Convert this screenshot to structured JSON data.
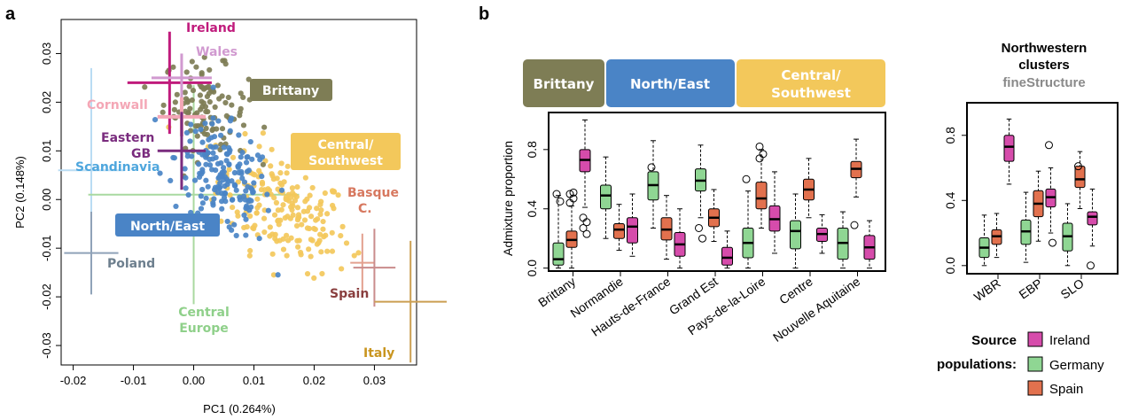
{
  "panel_a": {
    "letter": "a",
    "chart_data": {
      "type": "scatter",
      "xlabel": "PC1 (0.264%)",
      "ylabel": "PC2 (0.148%)",
      "xlim": [
        -0.022,
        0.037
      ],
      "ylim": [
        -0.034,
        0.037
      ],
      "x_ticks": [
        "-0.02",
        "-0.01",
        "0.00",
        "0.01",
        "0.02",
        "0.03"
      ],
      "y_ticks": [
        "-0.03",
        "-0.02",
        "-0.01",
        "0.00",
        "0.01",
        "0.02",
        "0.03"
      ],
      "clusters": [
        {
          "name": "Brittany",
          "color": "#7e7d55",
          "center": [
            0.002,
            0.019
          ],
          "spread": [
            0.0035,
            0.0045
          ],
          "n": 110
        },
        {
          "name": "North/East",
          "color": "#4a84c6",
          "center": [
            0.005,
            0.004
          ],
          "spread": [
            0.004,
            0.0055
          ],
          "n": 170
        },
        {
          "name": "Central/Southwest",
          "color": "#f3c85b",
          "center": [
            0.015,
            -0.002
          ],
          "spread": [
            0.0055,
            0.0055
          ],
          "n": 190
        }
      ],
      "reference_populations": [
        {
          "name": "Ireland",
          "color": "#c01b7c",
          "x": -0.004,
          "y": 0.024,
          "xerr": 0.007,
          "yerr": 0.0105,
          "width": 3
        },
        {
          "name": "Wales",
          "color": "#d19ad0",
          "x": -0.002,
          "y": 0.025,
          "xerr": 0.005,
          "yerr": 0.005,
          "width": 3
        },
        {
          "name": "Cornwall",
          "color": "#f4a7b6",
          "x": -0.002,
          "y": 0.017,
          "xerr": 0.004,
          "yerr": 0.004,
          "width": 4
        },
        {
          "name": "Eastern GB",
          "color": "#7a2c7e",
          "x": -0.002,
          "y": 0.01,
          "xerr": 0.004,
          "yerr": 0.008,
          "width": 3
        },
        {
          "name": "Scandinavia",
          "color": "#b9dcf3",
          "x": -0.017,
          "y": 0.006,
          "xerr": 0.0055,
          "yerr": 0.021,
          "width": 2
        },
        {
          "name": "Poland",
          "color": "#8fa2b8",
          "x": -0.017,
          "y": -0.011,
          "xerr": 0.0045,
          "yerr": 0.0085,
          "width": 2
        },
        {
          "name": "Central Europe",
          "color": "#a9d9a0",
          "x": 0.0,
          "y": 0.001,
          "xerr": 0.0175,
          "yerr": 0.0225,
          "width": 2
        },
        {
          "name": "Basque C.",
          "color": "#e3a08f",
          "x": 0.028,
          "y": -0.013,
          "xerr": 0.002,
          "yerr": 0.006,
          "width": 2
        },
        {
          "name": "Spain",
          "color": "#ca8c8c",
          "x": 0.03,
          "y": -0.014,
          "xerr": 0.0035,
          "yerr": 0.008,
          "width": 2
        },
        {
          "name": "Italy",
          "color": "#cb9f52",
          "x": 0.036,
          "y": -0.021,
          "xerr": 0.006,
          "yerr": 0.0125,
          "width": 2
        }
      ],
      "labels": [
        {
          "text": "Ireland",
          "color": "#c01b7c",
          "boxed": false
        },
        {
          "text": "Wales",
          "color": "#d19ad0",
          "boxed": false
        },
        {
          "text": "Brittany",
          "color": "#ffffff",
          "bg": "#7e7d55",
          "boxed": true
        },
        {
          "text": "Cornwall",
          "color": "#f4a7b6",
          "boxed": false
        },
        {
          "text": "Eastern",
          "color": "#7a2c7e",
          "boxed": false
        },
        {
          "text": "GB",
          "color": "#7a2c7e",
          "boxed": false
        },
        {
          "text": "Central/",
          "color": "#ffffff",
          "bg": "#f3c85b",
          "boxed": true
        },
        {
          "text": "Southwest",
          "color": "#ffffff",
          "bg": "#f3c85b",
          "boxed": true
        },
        {
          "text": "Scandinavia",
          "color": "#4ea6dd",
          "boxed": false
        },
        {
          "text": "Basque",
          "color": "#d7785f",
          "boxed": false
        },
        {
          "text": "C.",
          "color": "#d7785f",
          "boxed": false
        },
        {
          "text": "North/East",
          "color": "#ffffff",
          "bg": "#4a84c6",
          "boxed": true
        },
        {
          "text": "Poland",
          "color": "#6d7f8e",
          "boxed": false
        },
        {
          "text": "Spain",
          "color": "#8a3f3f",
          "boxed": false
        },
        {
          "text": "Central",
          "color": "#8fd08a",
          "boxed": false
        },
        {
          "text": "Europe",
          "color": "#8fd08a",
          "boxed": false
        },
        {
          "text": "Italy",
          "color": "#c9951f",
          "boxed": false
        }
      ]
    }
  },
  "panel_b": {
    "letter": "b",
    "headers": [
      {
        "text": "Brittany",
        "color": "#7e7d55"
      },
      {
        "text": "North/East",
        "color": "#4a84c6"
      },
      {
        "text": "Central/",
        "color": "#f3c85b"
      },
      {
        "text": "Southwest",
        "color": "#f3c85b"
      }
    ],
    "chart_data": [
      {
        "type": "box",
        "ylabel": "Admixture proportion",
        "ylim": [
          -0.02,
          1.05
        ],
        "y_ticks": [
          "0.0",
          "0.4",
          "0.8"
        ],
        "categories": [
          "Brittany",
          "Normandie",
          "Hauts-de-France",
          "Grand Est",
          "Pays-de-la-Loire",
          "Centre",
          "Nouvelle Aquitaine"
        ],
        "series_colors": {
          "Germany": "#8fd693",
          "Spain": "#e2714e",
          "Ireland": "#d64cab"
        },
        "boxes": [
          [
            {
              "series": "Germany",
              "min": 0.0,
              "q1": 0.02,
              "median": 0.06,
              "q3": 0.17,
              "max": 0.49,
              "outliers": [
                0.5,
                0.45
              ]
            },
            {
              "series": "Spain",
              "min": 0.0,
              "q1": 0.14,
              "median": 0.19,
              "q3": 0.25,
              "max": 0.42,
              "outliers": [
                0.5,
                0.47,
                0.44,
                0.51
              ]
            },
            {
              "series": "Ireland",
              "min": 0.41,
              "q1": 0.65,
              "median": 0.73,
              "q3": 0.8,
              "max": 1.0,
              "outliers": [
                0.34,
                0.31,
                0.27,
                0.23
              ]
            }
          ],
          [
            {
              "series": "Germany",
              "min": 0.2,
              "q1": 0.4,
              "median": 0.49,
              "q3": 0.56,
              "max": 0.75,
              "outliers": []
            },
            {
              "series": "Spain",
              "min": 0.12,
              "q1": 0.2,
              "median": 0.26,
              "q3": 0.3,
              "max": 0.43,
              "outliers": []
            },
            {
              "series": "Ireland",
              "min": 0.08,
              "q1": 0.17,
              "median": 0.28,
              "q3": 0.34,
              "max": 0.5,
              "outliers": []
            }
          ],
          [
            {
              "series": "Germany",
              "min": 0.27,
              "q1": 0.46,
              "median": 0.56,
              "q3": 0.65,
              "max": 0.86,
              "outliers": [
                0.68
              ]
            },
            {
              "series": "Spain",
              "min": 0.06,
              "q1": 0.19,
              "median": 0.26,
              "q3": 0.34,
              "max": 0.49,
              "outliers": []
            },
            {
              "series": "Ireland",
              "min": 0.0,
              "q1": 0.08,
              "median": 0.16,
              "q3": 0.24,
              "max": 0.4,
              "outliers": []
            }
          ],
          [
            {
              "series": "Germany",
              "min": 0.34,
              "q1": 0.52,
              "median": 0.59,
              "q3": 0.67,
              "max": 0.83,
              "outliers": [
                0.27,
                0.2
              ]
            },
            {
              "series": "Spain",
              "min": 0.18,
              "q1": 0.28,
              "median": 0.34,
              "q3": 0.4,
              "max": 0.53,
              "outliers": []
            },
            {
              "series": "Ireland",
              "min": 0.0,
              "q1": 0.02,
              "median": 0.07,
              "q3": 0.14,
              "max": 0.25,
              "outliers": []
            }
          ],
          [
            {
              "series": "Germany",
              "min": 0.0,
              "q1": 0.07,
              "median": 0.17,
              "q3": 0.27,
              "max": 0.52,
              "outliers": [
                0.6
              ]
            },
            {
              "series": "Spain",
              "min": 0.27,
              "q1": 0.4,
              "median": 0.47,
              "q3": 0.58,
              "max": 0.8,
              "outliers": [
                0.82,
                0.77,
                0.74
              ]
            },
            {
              "series": "Ireland",
              "min": 0.1,
              "q1": 0.25,
              "median": 0.33,
              "q3": 0.42,
              "max": 0.65,
              "outliers": []
            }
          ],
          [
            {
              "series": "Germany",
              "min": 0.0,
              "q1": 0.13,
              "median": 0.25,
              "q3": 0.32,
              "max": 0.5,
              "outliers": []
            },
            {
              "series": "Spain",
              "min": 0.34,
              "q1": 0.46,
              "median": 0.53,
              "q3": 0.6,
              "max": 0.74,
              "outliers": []
            },
            {
              "series": "Ireland",
              "min": 0.1,
              "q1": 0.18,
              "median": 0.23,
              "q3": 0.27,
              "max": 0.36,
              "outliers": []
            }
          ],
          [
            {
              "series": "Germany",
              "min": 0.0,
              "q1": 0.06,
              "median": 0.17,
              "q3": 0.27,
              "max": 0.38,
              "outliers": []
            },
            {
              "series": "Spain",
              "min": 0.48,
              "q1": 0.61,
              "median": 0.67,
              "q3": 0.72,
              "max": 0.87,
              "outliers": [
                0.29
              ]
            },
            {
              "series": "Ireland",
              "min": 0.0,
              "q1": 0.06,
              "median": 0.14,
              "q3": 0.22,
              "max": 0.32,
              "outliers": []
            }
          ]
        ]
      },
      {
        "type": "box",
        "title_lines": [
          "Northwestern",
          "clusters"
        ],
        "subtitle": "fineStructure",
        "ylim": [
          -0.05,
          1.0
        ],
        "y_ticks": [
          "0.0",
          "0.4",
          "0.8"
        ],
        "categories": [
          "WBR",
          "EBP",
          "SLO"
        ],
        "boxes": [
          [
            {
              "series": "Germany",
              "min": 0.0,
              "q1": 0.05,
              "median": 0.11,
              "q3": 0.17,
              "max": 0.31,
              "outliers": []
            },
            {
              "series": "Spain",
              "min": 0.05,
              "q1": 0.13,
              "median": 0.18,
              "q3": 0.22,
              "max": 0.32,
              "outliers": []
            },
            {
              "series": "Ireland",
              "min": 0.5,
              "q1": 0.64,
              "median": 0.73,
              "q3": 0.8,
              "max": 0.9,
              "outliers": []
            }
          ],
          [
            {
              "series": "Germany",
              "min": 0.02,
              "q1": 0.13,
              "median": 0.21,
              "q3": 0.28,
              "max": 0.45,
              "outliers": []
            },
            {
              "series": "Spain",
              "min": 0.15,
              "q1": 0.3,
              "median": 0.38,
              "q3": 0.46,
              "max": 0.58,
              "outliers": []
            },
            {
              "series": "Ireland",
              "min": 0.2,
              "q1": 0.36,
              "median": 0.42,
              "q3": 0.47,
              "max": 0.6,
              "outliers": [
                0.74,
                0.14
              ]
            }
          ],
          [
            {
              "series": "Germany",
              "min": 0.0,
              "q1": 0.09,
              "median": 0.18,
              "q3": 0.26,
              "max": 0.38,
              "outliers": []
            },
            {
              "series": "Spain",
              "min": 0.35,
              "q1": 0.48,
              "median": 0.53,
              "q3": 0.61,
              "max": 0.7,
              "outliers": [
                0.61
              ]
            },
            {
              "series": "Ireland",
              "min": 0.12,
              "q1": 0.25,
              "median": 0.3,
              "q3": 0.33,
              "max": 0.47,
              "outliers": [
                0.0
              ]
            }
          ]
        ]
      }
    ],
    "legend": {
      "title_lines": [
        "Source",
        "populations:"
      ],
      "items": [
        {
          "label": "Ireland",
          "color": "#d64cab"
        },
        {
          "label": "Germany",
          "color": "#8fd693"
        },
        {
          "label": "Spain",
          "color": "#e2714e"
        }
      ]
    }
  }
}
